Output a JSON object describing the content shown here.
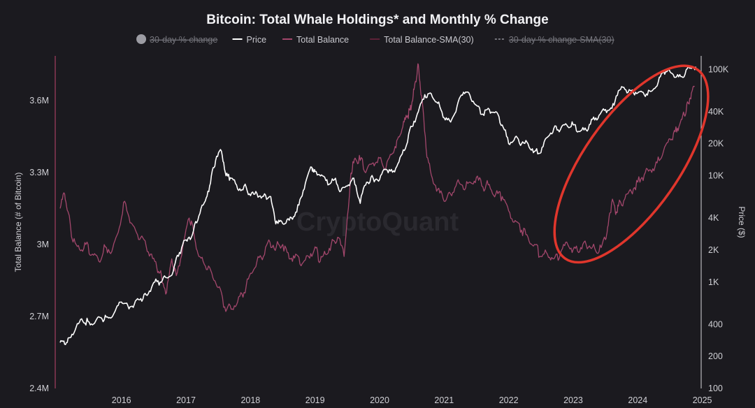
{
  "chart_data": {
    "type": "line",
    "title": "Bitcoin: Total Whale Holdings* and Monthly % Change",
    "legend": {
      "placement": "top",
      "entries": [
        {
          "label": "30-day % change",
          "style": "dot",
          "color": "#9c9ca3",
          "hidden": true
        },
        {
          "label": "Price",
          "style": "line",
          "color": "#ffffff",
          "hidden": false
        },
        {
          "label": "Total Balance",
          "style": "line",
          "color": "#a3476c",
          "hidden": false
        },
        {
          "label": "Total Balance-SMA(30)",
          "style": "line",
          "color": "#5e2238",
          "hidden": false
        },
        {
          "label": "30-day % change-SMA(30)",
          "style": "dashed",
          "color": "#75757c",
          "hidden": true
        }
      ]
    },
    "xlabel": "",
    "x_ticks": [
      "2016",
      "2017",
      "2018",
      "2019",
      "2020",
      "2021",
      "2022",
      "2023",
      "2024",
      "2025"
    ],
    "xlim": [
      2015.55,
      2025.45
    ],
    "y_left": {
      "label": "Total Balance (# of Bitcoin)",
      "ticks": [
        "2.4M",
        "2.7M",
        "3M",
        "3.3M",
        "3.6M"
      ],
      "lim": [
        2400000,
        3780000
      ]
    },
    "y_right": {
      "label": "Price ($)",
      "scale": "log",
      "ticks": [
        "100",
        "200",
        "400",
        "1K",
        "2K",
        "4K",
        "10K",
        "20K",
        "40K",
        "100K"
      ],
      "lim": [
        100,
        130000
      ]
    },
    "grid": false,
    "watermark": "CryptoQuant",
    "annotation": {
      "type": "ellipse",
      "color": "#e0362c",
      "x_range": [
        2023.1,
        2025.7
      ],
      "y_range_left": [
        2950000,
        3720000
      ]
    },
    "series": [
      {
        "name": "Total Balance",
        "axis": "left",
        "color": "#a3476c",
        "x": [
          2015.55,
          2015.62,
          2015.68,
          2015.75,
          2015.85,
          2015.95,
          2016.05,
          2016.15,
          2016.25,
          2016.35,
          2016.45,
          2016.55,
          2016.65,
          2016.75,
          2016.85,
          2016.95,
          2017.05,
          2017.12,
          2017.2,
          2017.28,
          2017.35,
          2017.45,
          2017.55,
          2017.62,
          2017.7,
          2017.8,
          2017.9,
          2018.0,
          2018.1,
          2018.2,
          2018.3,
          2018.4,
          2018.5,
          2018.6,
          2018.7,
          2018.8,
          2018.9,
          2019.0,
          2019.1,
          2019.2,
          2019.3,
          2019.4,
          2019.5,
          2019.58,
          2019.66,
          2019.75,
          2019.85,
          2019.95,
          2020.05,
          2020.08,
          2020.12,
          2020.2,
          2020.3,
          2020.4,
          2020.5,
          2020.6,
          2020.7,
          2020.78,
          2020.86,
          2020.92,
          2020.97,
          2021.02,
          2021.06,
          2021.1,
          2021.15,
          2021.22,
          2021.3,
          2021.4,
          2021.5,
          2021.6,
          2021.7,
          2021.8,
          2021.9,
          2022.0,
          2022.1,
          2022.2,
          2022.3,
          2022.4,
          2022.5,
          2022.6,
          2022.7,
          2022.8,
          2022.9,
          2023.0,
          2023.1,
          2023.2,
          2023.3,
          2023.4,
          2023.5,
          2023.6,
          2023.7,
          2023.8,
          2023.9,
          2024.0,
          2024.05,
          2024.1,
          2024.15,
          2024.2,
          2024.3,
          2024.4,
          2024.5,
          2024.6,
          2024.7,
          2024.8,
          2024.9,
          2025.0,
          2025.08,
          2025.15,
          2025.22,
          2025.28,
          2025.33,
          2025.38
        ],
        "values": [
          3150000,
          3210000,
          3130000,
          3010000,
          2980000,
          3000000,
          2960000,
          2930000,
          2990000,
          2970000,
          3050000,
          3180000,
          3090000,
          3040000,
          3020000,
          2960000,
          2900000,
          2870000,
          2800000,
          2940000,
          2870000,
          2990000,
          3110000,
          3050000,
          2950000,
          2910000,
          2880000,
          2820000,
          2740000,
          2730000,
          2760000,
          2800000,
          2880000,
          2930000,
          2950000,
          3010000,
          2990000,
          3000000,
          2940000,
          2960000,
          2920000,
          2950000,
          2990000,
          2930000,
          2960000,
          3000000,
          3030000,
          2950000,
          3280000,
          3320000,
          3360000,
          3350000,
          3310000,
          3340000,
          3360000,
          3320000,
          3380000,
          3440000,
          3490000,
          3530000,
          3560000,
          3620000,
          3680000,
          3750000,
          3620000,
          3400000,
          3290000,
          3230000,
          3180000,
          3210000,
          3260000,
          3230000,
          3260000,
          3280000,
          3240000,
          3250000,
          3210000,
          3200000,
          3140000,
          3100000,
          3060000,
          3030000,
          3000000,
          2950000,
          2960000,
          2940000,
          2960000,
          3010000,
          2980000,
          2970000,
          3000000,
          2990000,
          2970000,
          3020000,
          3100000,
          3180000,
          3140000,
          3160000,
          3190000,
          3220000,
          3260000,
          3290000,
          3310000,
          3340000,
          3390000,
          3440000,
          3470000,
          3500000,
          3540000,
          3590000,
          3630000,
          3660000
        ]
      },
      {
        "name": "Price",
        "axis": "right",
        "color": "#ffffff",
        "x": [
          2015.55,
          2015.62,
          2015.7,
          2015.8,
          2015.9,
          2016.0,
          2016.1,
          2016.2,
          2016.3,
          2016.4,
          2016.5,
          2016.6,
          2016.7,
          2016.8,
          2016.9,
          2017.0,
          2017.1,
          2017.2,
          2017.3,
          2017.4,
          2017.5,
          2017.6,
          2017.7,
          2017.8,
          2017.88,
          2017.96,
          2018.05,
          2018.12,
          2018.2,
          2018.3,
          2018.4,
          2018.5,
          2018.6,
          2018.7,
          2018.8,
          2018.88,
          2018.95,
          2019.05,
          2019.15,
          2019.25,
          2019.35,
          2019.45,
          2019.5,
          2019.6,
          2019.7,
          2019.8,
          2019.9,
          2020.0,
          2020.1,
          2020.2,
          2020.3,
          2020.4,
          2020.5,
          2020.6,
          2020.7,
          2020.8,
          2020.9,
          2021.0,
          2021.1,
          2021.2,
          2021.3,
          2021.4,
          2021.5,
          2021.6,
          2021.7,
          2021.8,
          2021.9,
          2022.0,
          2022.1,
          2022.2,
          2022.3,
          2022.4,
          2022.5,
          2022.6,
          2022.7,
          2022.8,
          2022.9,
          2023.0,
          2023.1,
          2023.2,
          2023.3,
          2023.4,
          2023.5,
          2023.6,
          2023.7,
          2023.8,
          2023.9,
          2024.0,
          2024.1,
          2024.2,
          2024.3,
          2024.4,
          2024.5,
          2024.6,
          2024.7,
          2024.8,
          2024.9,
          2025.0,
          2025.1,
          2025.2,
          2025.3,
          2025.4
        ],
        "values": [
          270,
          260,
          300,
          380,
          430,
          420,
          430,
          450,
          460,
          530,
          650,
          600,
          620,
          700,
          750,
          990,
          1000,
          1100,
          1250,
          1900,
          2500,
          2800,
          4200,
          5800,
          8500,
          14000,
          17000,
          10000,
          9500,
          7500,
          8000,
          6500,
          6800,
          6400,
          6400,
          3800,
          3700,
          3600,
          3900,
          5300,
          8500,
          12000,
          11000,
          10200,
          8200,
          9200,
          7200,
          8000,
          9500,
          5500,
          8700,
          9500,
          9200,
          11500,
          10800,
          13500,
          18000,
          29000,
          40000,
          58000,
          59000,
          48000,
          35000,
          32000,
          45000,
          61000,
          57000,
          46000,
          38000,
          42000,
          40000,
          30000,
          20000,
          23000,
          20000,
          20000,
          17000,
          16500,
          23000,
          28000,
          27000,
          30000,
          30000,
          26000,
          27000,
          34000,
          37000,
          42000,
          43000,
          63000,
          65000,
          63000,
          60000,
          58000,
          62000,
          70000,
          97000,
          95000,
          85000,
          84000,
          103000,
          106000
        ]
      }
    ]
  }
}
